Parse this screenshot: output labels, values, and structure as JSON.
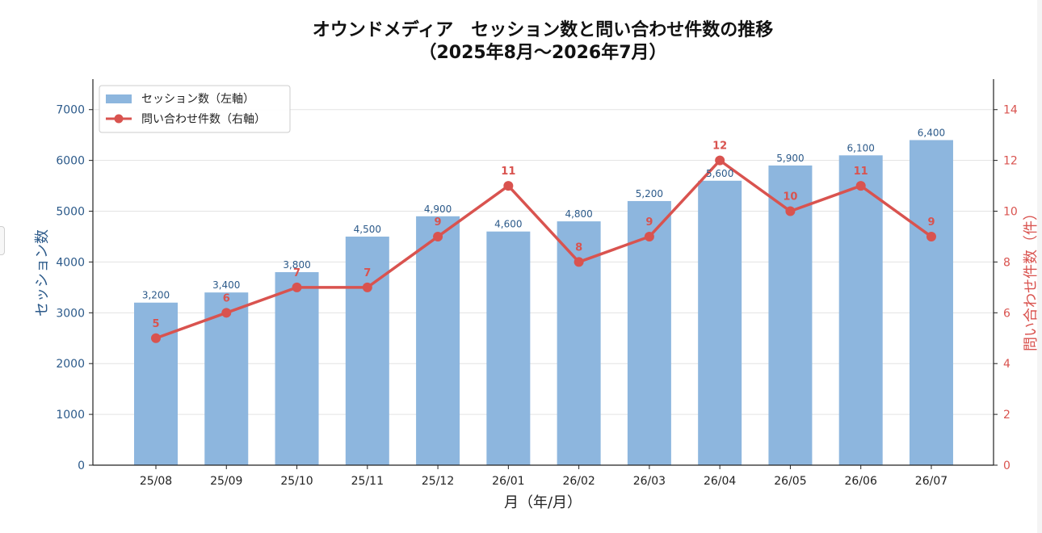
{
  "chart_data": {
    "type": "bar+line",
    "title_line1": "オウンドメディア　セッション数と問い合わせ件数の推移",
    "title_line2": "（2025年8月〜2026年7月）",
    "xlabel": "月（年/月）",
    "ylabel_left": "セッション数",
    "ylabel_right": "問い合わせ件数（件）",
    "categories": [
      "25/08",
      "25/09",
      "25/10",
      "25/11",
      "25/12",
      "26/01",
      "26/02",
      "26/03",
      "26/04",
      "26/05",
      "26/06",
      "26/07"
    ],
    "left_axis": {
      "min": 0,
      "max": 7600,
      "ticks": [
        0,
        1000,
        2000,
        3000,
        4000,
        5000,
        6000,
        7000
      ]
    },
    "right_axis": {
      "min": 0,
      "max": 15.2,
      "ticks": [
        0,
        2,
        4,
        6,
        8,
        10,
        12,
        14
      ]
    },
    "grid": true,
    "legend_position": "top-left",
    "series": [
      {
        "name": "セッション数（左軸）",
        "kind": "bar",
        "axis": "left",
        "color": "#8db6de",
        "label_color": "#2c5a8a",
        "values": [
          3200,
          3400,
          3800,
          4500,
          4900,
          4600,
          4800,
          5200,
          5600,
          5900,
          6100,
          6400
        ],
        "labels": [
          "3,200",
          "3,400",
          "3,800",
          "4,500",
          "4,900",
          "4,600",
          "4,800",
          "5,200",
          "5,600",
          "5,900",
          "6,100",
          "6,400"
        ]
      },
      {
        "name": "問い合わせ件数（右軸）",
        "kind": "line",
        "axis": "right",
        "color": "#d9534f",
        "values": [
          5,
          6,
          7,
          7,
          9,
          11,
          8,
          9,
          12,
          10,
          11,
          9
        ],
        "labels": [
          "5",
          "6",
          "7",
          "7",
          "9",
          "11",
          "8",
          "9",
          "12",
          "10",
          "11",
          "9"
        ]
      }
    ],
    "colors": {
      "left_axis": "#2c5a8a",
      "right_axis": "#d9534f",
      "grid": "#e3e3e3"
    }
  }
}
